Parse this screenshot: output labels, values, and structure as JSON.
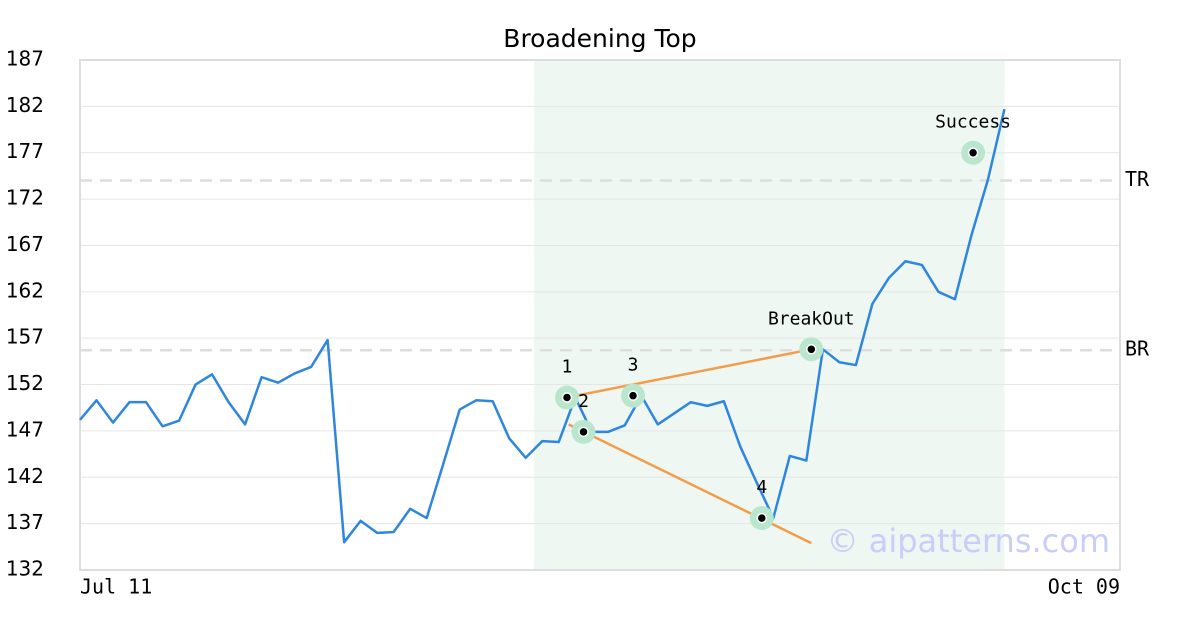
{
  "chart_data": {
    "type": "line",
    "title": "Broadening Top",
    "x": [
      0,
      1,
      2,
      3,
      4,
      5,
      6,
      7,
      8,
      9,
      10,
      11,
      12,
      13,
      14,
      15,
      16,
      17,
      18,
      19,
      20,
      21,
      22,
      23,
      24,
      25,
      26,
      27,
      28,
      29,
      30,
      31,
      32,
      33,
      34,
      35,
      36,
      37,
      38,
      39,
      40,
      41,
      42,
      43,
      44,
      45,
      46,
      47,
      48,
      49,
      50,
      51,
      52,
      53,
      54,
      55,
      56
    ],
    "values": [
      148.2,
      150.3,
      147.9,
      150.1,
      150.1,
      147.5,
      148.1,
      152.0,
      153.1,
      150.1,
      147.7,
      152.8,
      152.2,
      153.2,
      153.9,
      156.8,
      135.0,
      137.3,
      136.0,
      136.1,
      138.6,
      137.6,
      143.4,
      149.3,
      150.3,
      150.2,
      146.2,
      144.1,
      145.9,
      145.8,
      150.6,
      146.9,
      146.9,
      147.6,
      150.8,
      147.7,
      148.9,
      150.1,
      149.7,
      150.2,
      145.3,
      141.4,
      137.6,
      144.3,
      143.8,
      155.8,
      154.4,
      154.1,
      160.7,
      163.5,
      165.3,
      164.9,
      162.0,
      161.2,
      168.1,
      174.1,
      181.7
    ],
    "color": "#2e86de",
    "xlim": [
      0,
      63
    ],
    "xticks": [
      {
        "value": 0,
        "label": "Jul 11"
      },
      {
        "value": 63,
        "label": "Oct 09"
      }
    ],
    "ylim": [
      132,
      187
    ],
    "yticks": [
      132,
      137,
      142,
      147,
      152,
      157,
      162,
      167,
      172,
      177,
      182,
      187
    ],
    "grid": true,
    "shade": [
      27.5,
      56
    ],
    "trendlines": [
      {
        "x": [
          29.5,
          44.3
        ],
        "y": [
          150.6,
          155.8
        ],
        "color": "#f39c4a"
      },
      {
        "x": [
          29.6,
          44.3
        ],
        "y": [
          147.7,
          134.9
        ],
        "color": "#f39c4a"
      }
    ],
    "levels": [
      {
        "label": "TR",
        "value": 174.0
      },
      {
        "label": "BR",
        "value": 155.7
      }
    ],
    "points": [
      {
        "label": "1",
        "x": 29.5,
        "y": 150.6
      },
      {
        "label": "2",
        "x": 30.5,
        "y": 146.9
      },
      {
        "label": "3",
        "x": 33.5,
        "y": 150.8
      },
      {
        "label": "4",
        "x": 41.3,
        "y": 137.6
      },
      {
        "label": "BreakOut",
        "x": 44.3,
        "y": 155.8
      },
      {
        "label": "Success",
        "x": 54.1,
        "y": 177.0
      }
    ],
    "watermark": "© aipatterns.com"
  }
}
